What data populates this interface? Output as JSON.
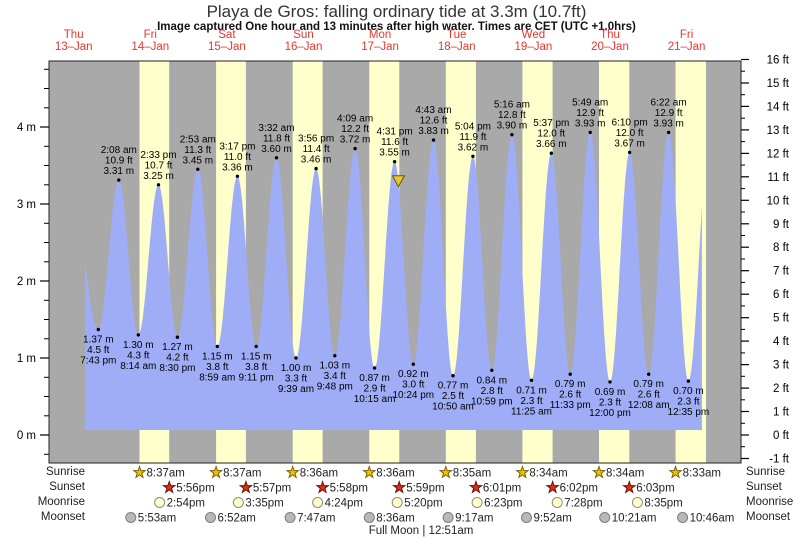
{
  "header": {
    "title": "Playa de Gros: falling  ordinary tide at 3.3m (10.7ft)",
    "subtitle": "Image captured One hour and 13 minutes after high water. Times are CET (UTC +1.0hrs)"
  },
  "days": [
    {
      "dow": "Thu",
      "date": "13–Jan"
    },
    {
      "dow": "Fri",
      "date": "14–Jan"
    },
    {
      "dow": "Sat",
      "date": "15–Jan"
    },
    {
      "dow": "Sun",
      "date": "16–Jan"
    },
    {
      "dow": "Mon",
      "date": "17–Jan"
    },
    {
      "dow": "Tue",
      "date": "18–Jan"
    },
    {
      "dow": "Wed",
      "date": "19–Jan"
    },
    {
      "dow": "Thu",
      "date": "20–Jan"
    },
    {
      "dow": "Fri",
      "date": "21–Jan"
    }
  ],
  "chart_data": {
    "type": "area",
    "title": "Playa de Gros tide height",
    "axis_left": {
      "unit": "m",
      "major_ticks": [
        0,
        1,
        2,
        3,
        4
      ],
      "minor_step": 0.25
    },
    "axis_right": {
      "unit": "ft",
      "major_ticks": [
        -1,
        0,
        1,
        2,
        3,
        4,
        5,
        6,
        7,
        8,
        9,
        10,
        11,
        12,
        13,
        14,
        15,
        16
      ],
      "minor_step": 0.5
    },
    "ylim_m": [
      -0.36,
      4.86
    ],
    "x_epoch": "Thu 13-Jan 00:00 CET",
    "events": [
      {
        "kind": "low",
        "day": 0,
        "time": "7:43 pm",
        "height_m": 1.37,
        "m_label": "1.37 m",
        "ft_label": "4.5 ft"
      },
      {
        "kind": "high",
        "day": 1,
        "time": "2:08 am",
        "height_m": 3.31,
        "m_label": "3.31 m",
        "ft_label": "10.9 ft"
      },
      {
        "kind": "low",
        "day": 1,
        "time": "8:14 am",
        "height_m": 1.3,
        "m_label": "1.30 m",
        "ft_label": "4.3 ft"
      },
      {
        "kind": "high",
        "day": 1,
        "time": "2:33 pm",
        "height_m": 3.25,
        "m_label": "3.25 m",
        "ft_label": "10.7 ft"
      },
      {
        "kind": "low",
        "day": 1,
        "time": "8:30 pm",
        "height_m": 1.27,
        "m_label": "1.27 m",
        "ft_label": "4.2 ft"
      },
      {
        "kind": "high",
        "day": 2,
        "time": "2:53 am",
        "height_m": 3.45,
        "m_label": "3.45 m",
        "ft_label": "11.3 ft"
      },
      {
        "kind": "low",
        "day": 2,
        "time": "8:59 am",
        "height_m": 1.15,
        "m_label": "1.15 m",
        "ft_label": "3.8 ft"
      },
      {
        "kind": "high",
        "day": 2,
        "time": "3:17 pm",
        "height_m": 3.36,
        "m_label": "3.36 m",
        "ft_label": "11.0 ft"
      },
      {
        "kind": "low",
        "day": 2,
        "time": "9:11 pm",
        "height_m": 1.15,
        "m_label": "1.15 m",
        "ft_label": "3.8 ft"
      },
      {
        "kind": "high",
        "day": 3,
        "time": "3:32 am",
        "height_m": 3.6,
        "m_label": "3.60 m",
        "ft_label": "11.8 ft"
      },
      {
        "kind": "low",
        "day": 3,
        "time": "9:39 am",
        "height_m": 1.0,
        "m_label": "1.00 m",
        "ft_label": "3.3 ft"
      },
      {
        "kind": "high",
        "day": 3,
        "time": "3:56 pm",
        "height_m": 3.46,
        "m_label": "3.46 m",
        "ft_label": "11.4 ft"
      },
      {
        "kind": "low",
        "day": 3,
        "time": "9:48 pm",
        "height_m": 1.03,
        "m_label": "1.03 m",
        "ft_label": "3.4 ft"
      },
      {
        "kind": "high",
        "day": 4,
        "time": "4:09 am",
        "height_m": 3.72,
        "m_label": "3.72 m",
        "ft_label": "12.2 ft"
      },
      {
        "kind": "low",
        "day": 4,
        "time": "10:15 am",
        "height_m": 0.87,
        "m_label": "0.87 m",
        "ft_label": "2.9 ft"
      },
      {
        "kind": "high",
        "day": 4,
        "time": "4:31 pm",
        "height_m": 3.55,
        "m_label": "3.55 m",
        "ft_label": "11.6 ft"
      },
      {
        "kind": "low",
        "day": 4,
        "time": "10:24 pm",
        "height_m": 0.92,
        "m_label": "0.92 m",
        "ft_label": "3.0 ft"
      },
      {
        "kind": "high",
        "day": 5,
        "time": "4:43 am",
        "height_m": 3.83,
        "m_label": "3.83 m",
        "ft_label": "12.6 ft"
      },
      {
        "kind": "low",
        "day": 5,
        "time": "10:50 am",
        "height_m": 0.77,
        "m_label": "0.77 m",
        "ft_label": "2.5 ft"
      },
      {
        "kind": "high",
        "day": 5,
        "time": "5:04 pm",
        "height_m": 3.62,
        "m_label": "3.62 m",
        "ft_label": "11.9 ft"
      },
      {
        "kind": "low",
        "day": 5,
        "time": "10:59 pm",
        "height_m": 0.84,
        "m_label": "0.84 m",
        "ft_label": "2.8 ft"
      },
      {
        "kind": "high",
        "day": 6,
        "time": "5:16 am",
        "height_m": 3.9,
        "m_label": "3.90 m",
        "ft_label": "12.8 ft"
      },
      {
        "kind": "low",
        "day": 6,
        "time": "11:25 am",
        "height_m": 0.71,
        "m_label": "0.71 m",
        "ft_label": "2.3 ft"
      },
      {
        "kind": "high",
        "day": 6,
        "time": "5:37 pm",
        "height_m": 3.66,
        "m_label": "3.66 m",
        "ft_label": "12.0 ft"
      },
      {
        "kind": "low",
        "day": 6,
        "time": "11:33 pm",
        "height_m": 0.79,
        "m_label": "0.79 m",
        "ft_label": "2.6 ft"
      },
      {
        "kind": "high",
        "day": 7,
        "time": "5:49 am",
        "height_m": 3.93,
        "m_label": "3.93 m",
        "ft_label": "12.9 ft"
      },
      {
        "kind": "low",
        "day": 7,
        "time": "12:00 pm",
        "height_m": 0.69,
        "m_label": "0.69 m",
        "ft_label": "2.3 ft"
      },
      {
        "kind": "high",
        "day": 7,
        "time": "6:10 pm",
        "height_m": 3.67,
        "m_label": "3.67 m",
        "ft_label": "12.0 ft"
      },
      {
        "kind": "low",
        "day": 8,
        "time": "12:08 am",
        "height_m": 0.79,
        "m_label": "0.79 m",
        "ft_label": "2.6 ft"
      },
      {
        "kind": "high",
        "day": 8,
        "time": "6:22 am",
        "height_m": 3.93,
        "m_label": "3.93 m",
        "ft_label": "12.9 ft"
      },
      {
        "kind": "low",
        "day": 8,
        "time": "12:35 pm",
        "height_m": 0.7,
        "m_label": "0.70 m",
        "ft_label": "2.3 ft"
      }
    ],
    "curve_clip": {
      "start_hours": 15.54,
      "end_hours": 208.8
    },
    "current_time_marker": {
      "hours_since_epoch": 113.73
    }
  },
  "sun_moon": {
    "rows": [
      {
        "label": "Sunrise",
        "icon": "sunrise-star-icon",
        "entries": [
          {
            "day": 1,
            "time": "8:37am"
          },
          {
            "day": 2,
            "time": "8:37am"
          },
          {
            "day": 3,
            "time": "8:36am"
          },
          {
            "day": 4,
            "time": "8:36am"
          },
          {
            "day": 5,
            "time": "8:35am"
          },
          {
            "day": 6,
            "time": "8:34am"
          },
          {
            "day": 7,
            "time": "8:34am"
          },
          {
            "day": 8,
            "time": "8:33am"
          }
        ]
      },
      {
        "label": "Sunset",
        "icon": "sunset-star-icon",
        "entries": [
          {
            "day": 1,
            "time": "5:56pm"
          },
          {
            "day": 2,
            "time": "5:57pm"
          },
          {
            "day": 3,
            "time": "5:58pm"
          },
          {
            "day": 4,
            "time": "5:59pm"
          },
          {
            "day": 5,
            "time": "6:01pm"
          },
          {
            "day": 6,
            "time": "6:02pm"
          },
          {
            "day": 7,
            "time": "6:03pm"
          }
        ]
      },
      {
        "label": "Moonrise",
        "icon": "moonrise-circle-icon",
        "entries": [
          {
            "day": 1,
            "time": "2:54pm"
          },
          {
            "day": 2,
            "time": "3:35pm"
          },
          {
            "day": 3,
            "time": "4:24pm"
          },
          {
            "day": 4,
            "time": "5:20pm"
          },
          {
            "day": 5,
            "time": "6:23pm"
          },
          {
            "day": 6,
            "time": "7:28pm"
          },
          {
            "day": 7,
            "time": "8:35pm"
          }
        ]
      },
      {
        "label": "Moonset",
        "icon": "moonset-circle-icon",
        "entries": [
          {
            "day": 1,
            "time": "5:53am"
          },
          {
            "day": 2,
            "time": "6:52am"
          },
          {
            "day": 3,
            "time": "7:47am"
          },
          {
            "day": 4,
            "time": "8:36am"
          },
          {
            "day": 5,
            "time": "9:17am"
          },
          {
            "day": 6,
            "time": "9:52am"
          },
          {
            "day": 7,
            "time": "10:21am"
          },
          {
            "day": 8,
            "time": "10:46am"
          }
        ]
      }
    ],
    "footnote": "Full Moon | 12:51am"
  },
  "colors": {
    "plot_bg": "#a9a9a9",
    "daylight_band": "#ffffcc",
    "tide_fill": "#9fadf6",
    "day_label_red": "#e8362d",
    "marker_triangle": "#eac435",
    "marker_triangle_stroke": "#6b5a00",
    "sunrise_star": "#f2c200",
    "sunrise_star_stroke": "#7a6400",
    "sunset_star": "#d93118",
    "sunset_star_stroke": "#6e1205",
    "moonrise_circle": "#ffffcc",
    "moonrise_circle_stroke": "#8f8f77",
    "moonset_circle": "#b9b9b9",
    "moonset_circle_stroke": "#7d7d7d"
  }
}
